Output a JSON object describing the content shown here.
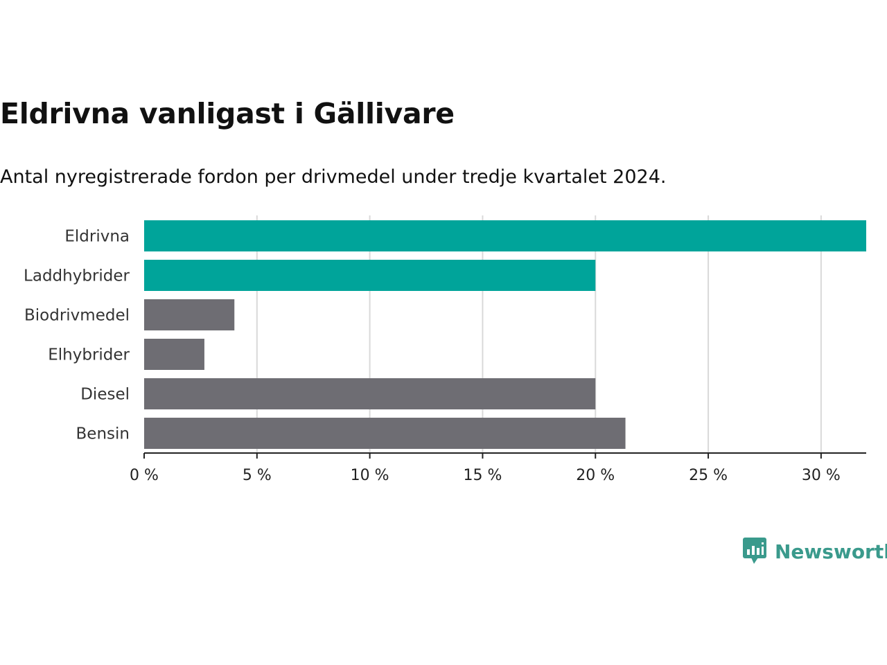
{
  "title": "Eldrivna vanligast i Gällivare",
  "subtitle": "Antal nyregistrerade fordon per drivmedel under tredje kvartalet 2024.",
  "brand": {
    "name": "Newsworthy",
    "icon": "bar-chart-speech-bubble-icon",
    "color": "#3a9a8c"
  },
  "colors": {
    "highlight": "#00a49a",
    "default": "#6e6d73",
    "grid": "#d9d9d9",
    "axis": "#222222"
  },
  "chart_data": {
    "type": "bar",
    "orientation": "horizontal",
    "categories": [
      "Eldrivna",
      "Laddhybrider",
      "Biodrivmedel",
      "Elhybrider",
      "Diesel",
      "Bensin"
    ],
    "values": [
      32,
      20,
      4,
      2.67,
      20,
      21.33
    ],
    "highlighted": [
      true,
      true,
      false,
      false,
      false,
      false
    ],
    "unit": "%",
    "xlim": [
      0,
      32
    ],
    "xticks": [
      0,
      5,
      10,
      15,
      20,
      25,
      30
    ],
    "xtick_labels": [
      "0 %",
      "5 %",
      "10 %",
      "15 %",
      "20 %",
      "25 %",
      "30 %"
    ],
    "grid": true,
    "legend": "none"
  }
}
